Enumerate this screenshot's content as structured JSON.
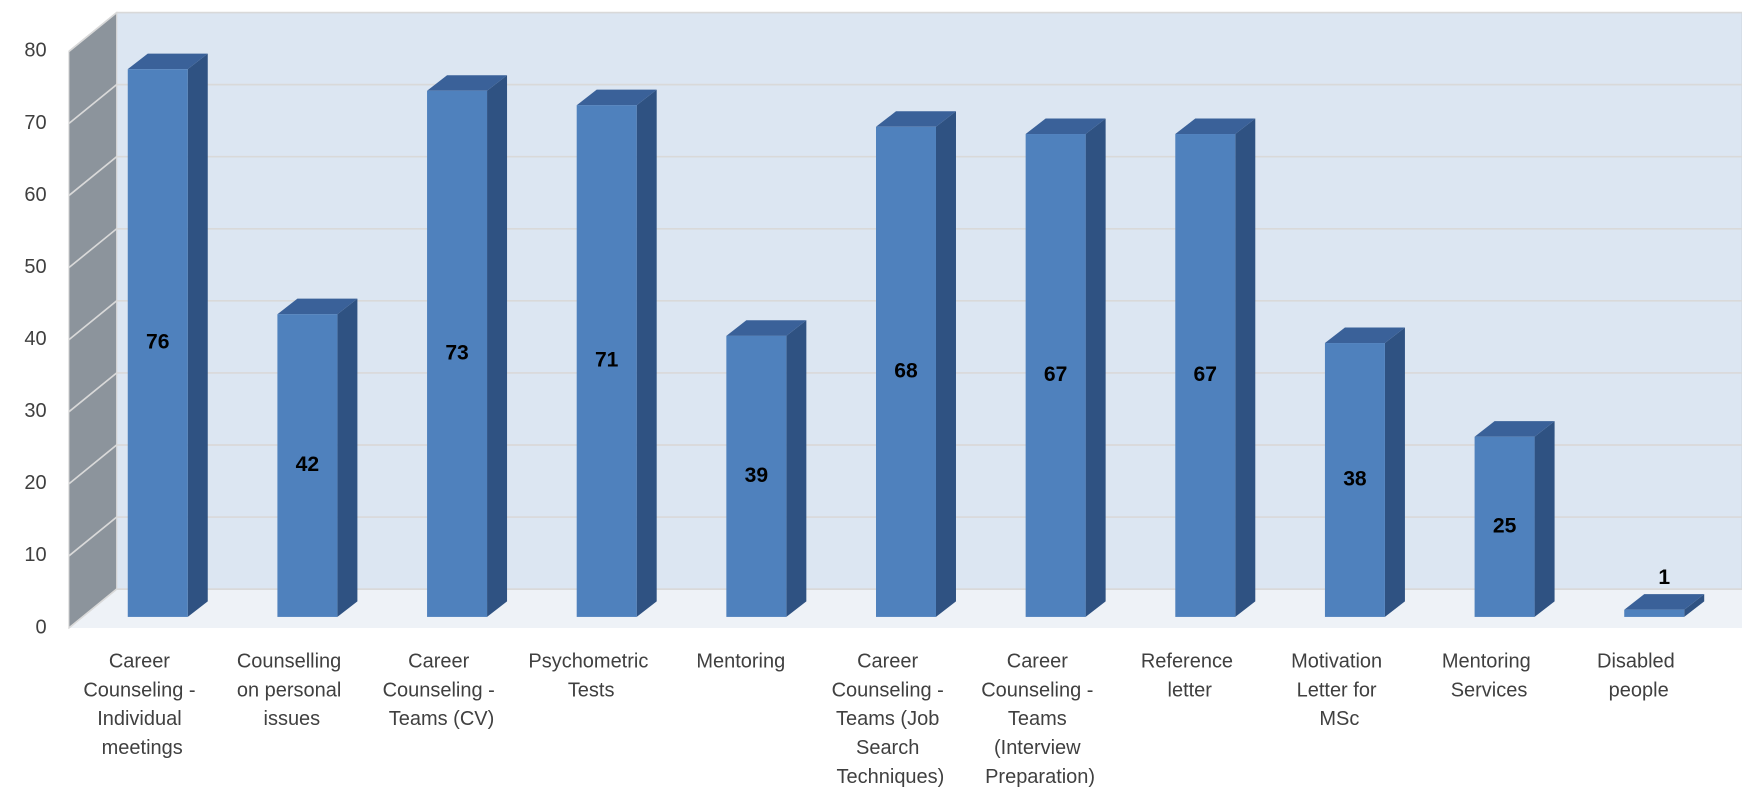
{
  "chart_data": {
    "type": "bar3d",
    "categories": [
      "Career Counseling - Individual meetings",
      "Counselling on personal issues",
      "Career Counseling - Teams (CV)",
      "Psychometric Tests",
      "Mentoring",
      "Career Counseling - Teams (Job Search Techniques)",
      "Career Counseling - Teams (Interview Preparation)",
      "Reference letter",
      "Motivation Letter for MSc",
      "Mentoring Services",
      "Disabled people"
    ],
    "values": [
      76,
      42,
      73,
      71,
      39,
      68,
      67,
      67,
      38,
      25,
      1
    ],
    "color": "#4f81bd",
    "ylim": [
      0,
      80
    ],
    "yticks": [
      0,
      10,
      20,
      30,
      40,
      50,
      60,
      70,
      80
    ],
    "grid": true
  }
}
